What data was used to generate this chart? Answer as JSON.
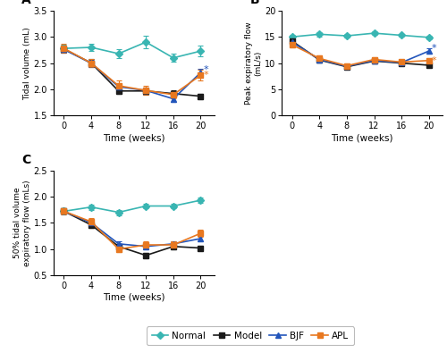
{
  "weeks": [
    0,
    4,
    8,
    12,
    16,
    20
  ],
  "panel_A": {
    "title": "A",
    "ylabel": "Tidal volume (mL)",
    "xlabel": "Time (weeks)",
    "ylim": [
      1.5,
      3.5
    ],
    "yticks": [
      1.5,
      2.0,
      2.5,
      3.0,
      3.5
    ],
    "Normal": {
      "y": [
        2.78,
        2.8,
        2.68,
        2.9,
        2.6,
        2.73
      ],
      "err": [
        0.07,
        0.06,
        0.09,
        0.12,
        0.08,
        0.1
      ]
    },
    "Model": {
      "y": [
        2.77,
        2.5,
        1.97,
        1.97,
        1.92,
        1.87
      ],
      "err": [
        0.07,
        0.08,
        0.06,
        0.07,
        0.06,
        0.05
      ]
    },
    "BJF": {
      "y": [
        2.76,
        2.5,
        2.05,
        1.98,
        1.82,
        2.32
      ],
      "err": [
        0.07,
        0.07,
        0.06,
        0.06,
        0.06,
        0.07
      ]
    },
    "APL": {
      "y": [
        2.78,
        2.5,
        2.07,
        1.98,
        1.9,
        2.27
      ],
      "err": [
        0.08,
        0.08,
        0.1,
        0.08,
        0.07,
        0.1
      ]
    },
    "star_positions": {
      "BJF": [
        20,
        2.38
      ],
      "APL": [
        20,
        2.27
      ]
    }
  },
  "panel_B": {
    "title": "B",
    "ylabel": "Peak expiratory flow\n(mL/s)",
    "xlabel": "Time (weeks)",
    "ylim": [
      0,
      20
    ],
    "yticks": [
      0,
      5,
      10,
      15,
      20
    ],
    "Normal": {
      "y": [
        15.0,
        15.5,
        15.2,
        15.7,
        15.3,
        14.9
      ],
      "err": [
        0.3,
        0.4,
        0.3,
        0.4,
        0.3,
        0.3
      ]
    },
    "Model": {
      "y": [
        14.2,
        10.6,
        9.3,
        10.4,
        10.0,
        9.6
      ],
      "err": [
        0.4,
        0.5,
        0.4,
        0.5,
        0.4,
        0.4
      ]
    },
    "BJF": {
      "y": [
        14.0,
        10.7,
        9.4,
        10.5,
        10.1,
        12.3
      ],
      "err": [
        0.4,
        0.5,
        0.4,
        0.5,
        0.4,
        0.5
      ]
    },
    "APL": {
      "y": [
        13.5,
        10.9,
        9.5,
        10.7,
        10.2,
        10.5
      ],
      "err": [
        0.5,
        0.5,
        0.5,
        0.5,
        0.5,
        0.5
      ]
    },
    "star_positions": {
      "BJF": [
        20,
        12.8
      ],
      "APL": [
        20,
        10.5
      ]
    }
  },
  "panel_C": {
    "title": "C",
    "ylabel": "50% tidal volume\nexpiratory flow (mLs)",
    "xlabel": "Time (weeks)",
    "ylim": [
      0.5,
      2.5
    ],
    "yticks": [
      0.5,
      1.0,
      1.5,
      2.0,
      2.5
    ],
    "Normal": {
      "y": [
        1.72,
        1.8,
        1.7,
        1.82,
        1.82,
        1.93
      ],
      "err": [
        0.05,
        0.05,
        0.05,
        0.05,
        0.05,
        0.05
      ]
    },
    "Model": {
      "y": [
        1.72,
        1.46,
        1.05,
        0.88,
        1.05,
        1.02
      ],
      "err": [
        0.05,
        0.06,
        0.05,
        0.05,
        0.05,
        0.05
      ]
    },
    "BJF": {
      "y": [
        1.72,
        1.5,
        1.1,
        1.05,
        1.1,
        1.2
      ],
      "err": [
        0.05,
        0.06,
        0.05,
        0.05,
        0.05,
        0.05
      ]
    },
    "APL": {
      "y": [
        1.72,
        1.52,
        1.0,
        1.08,
        1.08,
        1.3
      ],
      "err": [
        0.06,
        0.07,
        0.06,
        0.06,
        0.06,
        0.07
      ]
    }
  },
  "colors": {
    "Normal": "#39b5b2",
    "Model": "#1a1a1a",
    "BJF": "#2255bb",
    "APL": "#e87820"
  },
  "markers": {
    "Normal": "D",
    "Model": "s",
    "BJF": "^",
    "APL": "s"
  },
  "legend_labels": [
    "Normal",
    "Model",
    "BJF",
    "APL"
  ],
  "series_order": [
    "Normal",
    "Model",
    "BJF",
    "APL"
  ]
}
